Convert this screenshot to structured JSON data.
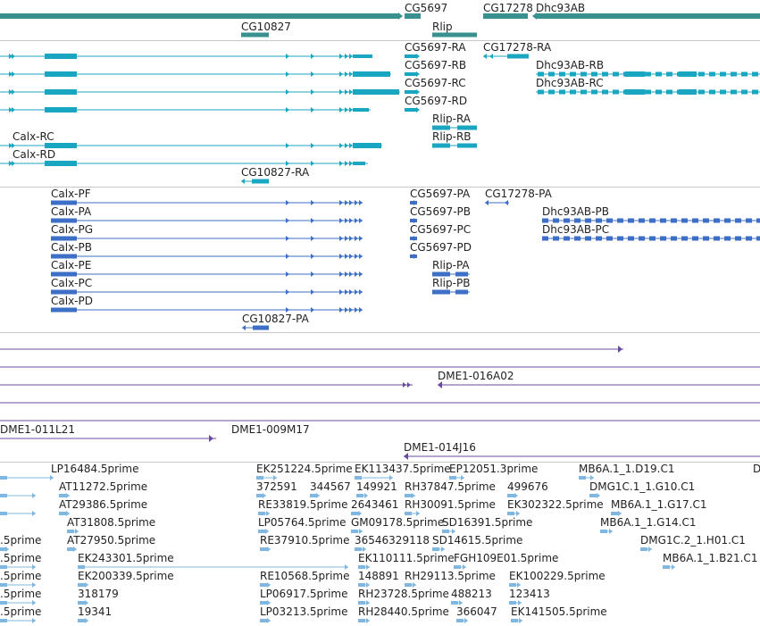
{
  "colors": {
    "gene": "#3a8f8f",
    "transcript": "#18a6c1",
    "protein": "#3e6fc6",
    "clone": "#6a4aa0",
    "est": "#7fb7e0",
    "separator": "#c8c8c8"
  },
  "tracks": {
    "genes": {
      "labels": [
        "CG5697",
        "CG17278",
        "Dhc93AB",
        "CG10827",
        "Rlip"
      ]
    },
    "transcripts": {
      "labels": [
        "CG5697-RA",
        "CG17278-RA",
        "CG5697-RB",
        "Dhc93AB-RB",
        "CG5697-RC",
        "Dhc93AB-RC",
        "CG5697-RD",
        "Rlip-RA",
        "Calx-RC",
        "Rlip-RB",
        "Calx-RD",
        "CG10827-RA"
      ]
    },
    "proteins": {
      "labels": [
        "Calx-PF",
        "CG5697-PA",
        "CG17278-PA",
        "Calx-PA",
        "CG5697-PB",
        "Dhc93AB-PB",
        "Calx-PG",
        "CG5697-PC",
        "Dhc93AB-PC",
        "Calx-PB",
        "CG5697-PD",
        "Calx-PE",
        "Rlip-PA",
        "Calx-PC",
        "Rlip-PB",
        "Calx-PD",
        "CG10827-PA"
      ]
    },
    "clones": {
      "labels": [
        "DME1-016A02",
        "DME1-011L21",
        "DME1-009M17",
        "DME1-014J16"
      ]
    },
    "ests": {
      "labels": [
        "LP16484.5prime",
        "EK251224.5prime",
        "EK113437.5prime",
        "EP12051.3prime",
        "MB6A.1_1.D19.C1",
        "D",
        "AT11272.5prime",
        "372591",
        "344567",
        "149921",
        "RH37847.5prime",
        "499676",
        "DMG1C.1_1.G10.C1",
        "AT29386.5prime",
        "RE33819.5prime",
        "2643461",
        "RH30091.5prime",
        "EK302322.5prime",
        "MB6A.1_1.G17.C1",
        "AT31808.5prime",
        "LP05764.5prime",
        "GM09178.5prime",
        "SD16391.5prime",
        "MB6A.1_1.G14.C1",
        ".5prime",
        "AT27950.5prime",
        "RE37910.5prime",
        "36546329118",
        "SD14615.5prime",
        "DMG1C.2_1.H01.C1",
        ".5prime",
        "EK243301.5prime",
        "EK110111.5prime",
        "FGH109E01.5prime",
        "MB6A.1_1.B21.C1",
        ".5prime",
        "EK200339.5prime",
        "RE10568.5prime",
        "148891",
        "RH29113.5prime",
        "EK100229.5prime",
        ".5prime",
        "318179",
        "LP06917.5prime",
        "RH23728.5prime",
        "488213",
        "123413",
        ".5prime",
        "19341",
        "LP03213.5prime",
        "RH28440.5prime",
        "366047",
        "EK141505.5prime"
      ]
    }
  }
}
